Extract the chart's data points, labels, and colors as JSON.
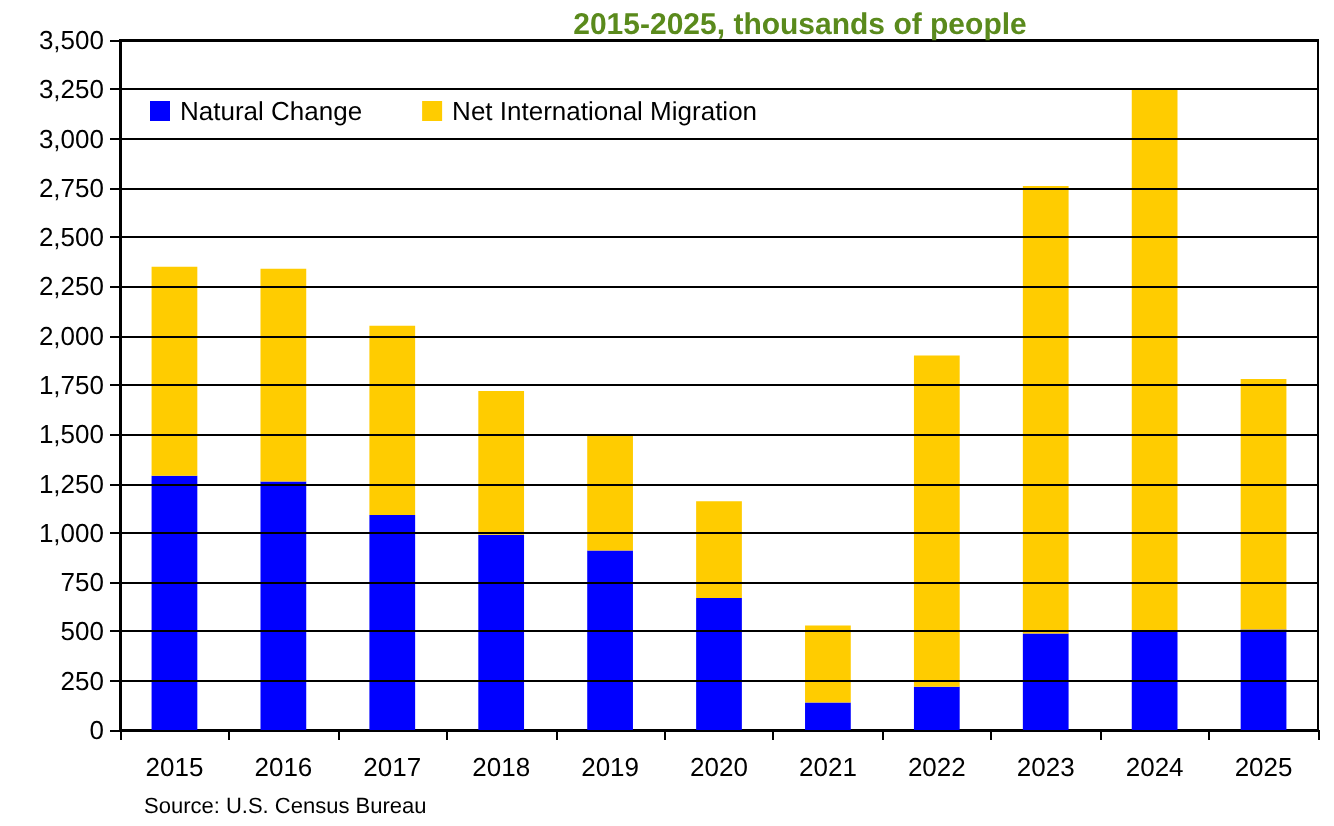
{
  "chart_data": {
    "type": "bar",
    "title": "2015-2025, thousands of people",
    "categories": [
      "2015",
      "2016",
      "2017",
      "2018",
      "2019",
      "2020",
      "2021",
      "2022",
      "2023",
      "2024",
      "2025"
    ],
    "stacked": true,
    "series": [
      {
        "name": "Natural Change",
        "color": "#0000ff",
        "values": [
          1290,
          1260,
          1090,
          990,
          910,
          670,
          140,
          220,
          490,
          500,
          510
        ]
      },
      {
        "name": "Net International Migration",
        "color": "#ffcc00",
        "values": [
          1060,
          1080,
          960,
          730,
          590,
          490,
          390,
          1680,
          2270,
          2750,
          1270
        ]
      }
    ],
    "ylim": [
      0,
      3500
    ],
    "yticks": [
      0,
      250,
      500,
      750,
      {
        "value": 1000,
        "label": "1,000"
      },
      {
        "value": 1250,
        "label": "1,250"
      },
      {
        "value": 1500,
        "label": "1,500"
      },
      {
        "value": 1750,
        "label": "1,750"
      },
      {
        "value": 2000,
        "label": "2,000"
      },
      {
        "value": 2250,
        "label": "2,250"
      },
      {
        "value": 2500,
        "label": "2,500"
      },
      {
        "value": 2750,
        "label": "2,750"
      },
      {
        "value": 3000,
        "label": "3,000"
      },
      {
        "value": 3250,
        "label": "3,250"
      },
      {
        "value": 3500,
        "label": "3,500"
      }
    ],
    "grid": "y",
    "legend": "top left",
    "annotations": [
      "Source: U.S. Census Bureau"
    ]
  }
}
